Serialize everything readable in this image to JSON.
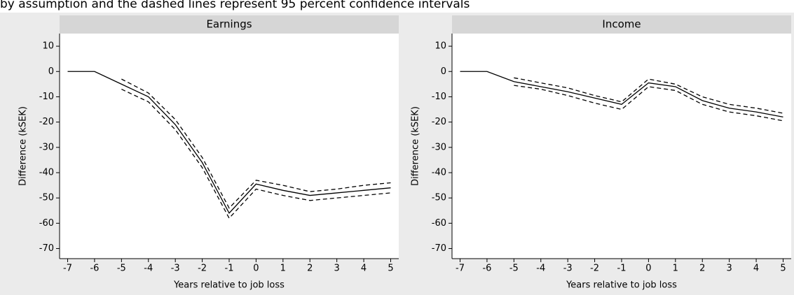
{
  "caption": "by assumption and the dashed lines represent 95 percent confidence intervals",
  "chart_data": [
    {
      "type": "line",
      "title": "Earnings",
      "xlabel": "Years relative to job loss",
      "ylabel": "Difference (kSEK)",
      "x": [
        -7,
        -6,
        -5,
        -4,
        -3,
        -2,
        -1,
        0,
        1,
        2,
        3,
        4,
        5
      ],
      "series": [
        {
          "color": "#000000",
          "dashed": false,
          "values": [
            0,
            0,
            -5,
            -10,
            -21,
            -36,
            -56,
            -44.5,
            -47,
            -49,
            -48,
            -47,
            -46
          ]
        },
        {
          "color": "#000000",
          "dashed": true,
          "values": [
            null,
            null,
            -3,
            -8.5,
            -19,
            -34,
            -54,
            -43,
            -45,
            -47.5,
            -46.5,
            -45,
            -44
          ]
        },
        {
          "color": "#000000",
          "dashed": true,
          "values": [
            null,
            null,
            -7,
            -12,
            -23,
            -38,
            -58,
            -46.5,
            -49,
            -51,
            -50,
            -49,
            -48
          ]
        }
      ],
      "xlim": [
        -7.3,
        5.3
      ],
      "ylim": [
        -74,
        15
      ],
      "xticks": [
        -7,
        -6,
        -5,
        -4,
        -3,
        -2,
        -1,
        0,
        1,
        2,
        3,
        4,
        5
      ],
      "yticks": [
        -70,
        -60,
        -50,
        -40,
        -30,
        -20,
        -10,
        0,
        10
      ]
    },
    {
      "type": "line",
      "title": "Income",
      "xlabel": "Years relative to job loss",
      "ylabel": "Difference (kSEK)",
      "x": [
        -7,
        -6,
        -5,
        -4,
        -3,
        -2,
        -1,
        0,
        1,
        2,
        3,
        4,
        5
      ],
      "series": [
        {
          "color": "#000000",
          "dashed": false,
          "values": [
            0,
            0,
            -4,
            -6,
            -8,
            -10.5,
            -13,
            -4.5,
            -6,
            -11.5,
            -14.5,
            -16,
            -18
          ]
        },
        {
          "color": "#000000",
          "dashed": true,
          "values": [
            null,
            null,
            -2.5,
            -4.5,
            -6.5,
            -9.5,
            -12,
            -3,
            -5,
            -10,
            -13,
            -14.5,
            -16.5
          ]
        },
        {
          "color": "#000000",
          "dashed": true,
          "values": [
            null,
            null,
            -5.5,
            -7,
            -9.5,
            -12.5,
            -15,
            -6,
            -7.5,
            -13,
            -16,
            -17.5,
            -19.5
          ]
        }
      ],
      "xlim": [
        -7.3,
        5.3
      ],
      "ylim": [
        -74,
        15
      ],
      "xticks": [
        -7,
        -6,
        -5,
        -4,
        -3,
        -2,
        -1,
        0,
        1,
        2,
        3,
        4,
        5
      ],
      "yticks": [
        -70,
        -60,
        -50,
        -40,
        -30,
        -20,
        -10,
        0,
        10
      ]
    }
  ]
}
